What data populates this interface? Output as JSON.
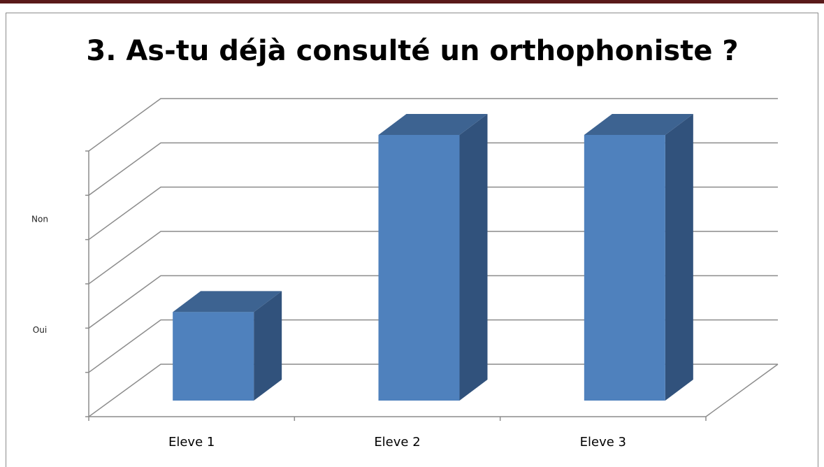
{
  "chart_data": {
    "type": "bar3d",
    "title": "3. As-tu déjà consulté un orthophoniste ?",
    "categories": [
      "Eleve 1",
      "Eleve 2",
      "Eleve 3"
    ],
    "values": [
      2,
      6,
      6
    ],
    "color": "#4f81bd",
    "ylim": [
      0,
      6
    ],
    "yticks": [
      0,
      1,
      2,
      3,
      4,
      5,
      6
    ],
    "ytick_labels": [
      {
        "value": 2,
        "label": "Oui"
      },
      {
        "value": 4.5,
        "label": "Non"
      }
    ],
    "grid": true
  }
}
